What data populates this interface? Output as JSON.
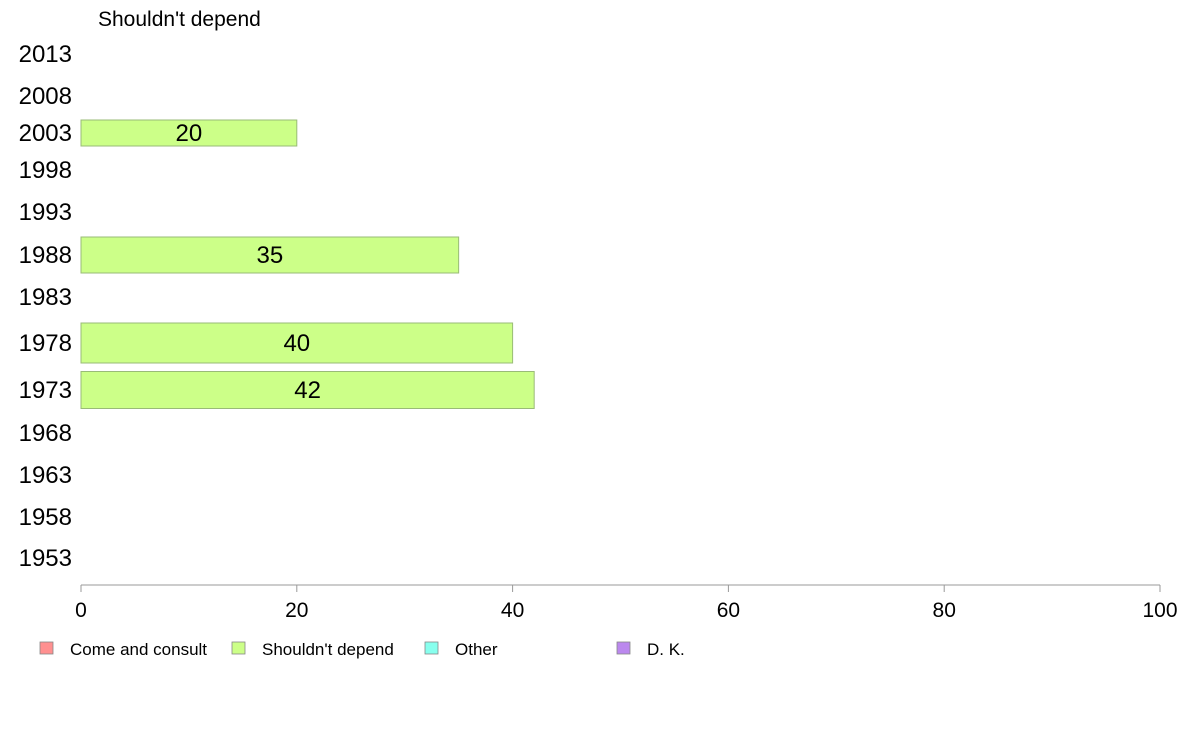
{
  "chart_data": {
    "type": "bar",
    "orientation": "horizontal",
    "title": "",
    "panel_title": "Shouldn't depend",
    "xlabel": "",
    "ylabel": "",
    "xlim": [
      0,
      100
    ],
    "x_ticks": [
      0,
      20,
      40,
      60,
      80,
      100
    ],
    "categories": [
      "2013",
      "2008",
      "2003",
      "1998",
      "1993",
      "1988",
      "1983",
      "1978",
      "1973",
      "1968",
      "1963",
      "1958",
      "1953"
    ],
    "series": [
      {
        "name": "Shouldn't depend",
        "color": "#ccff88",
        "values": [
          null,
          null,
          20,
          null,
          null,
          35,
          null,
          40,
          42,
          null,
          null,
          null,
          null
        ]
      }
    ],
    "legend": {
      "placement": "bottom",
      "entries": [
        {
          "label": "Come and consult",
          "color": "#ff9090"
        },
        {
          "label": "Shouldn't depend",
          "color": "#ccff88"
        },
        {
          "label": "Other",
          "color": "#88ffee"
        },
        {
          "label": "D. K.",
          "color": "#bb88ee"
        }
      ]
    },
    "grid": false
  }
}
